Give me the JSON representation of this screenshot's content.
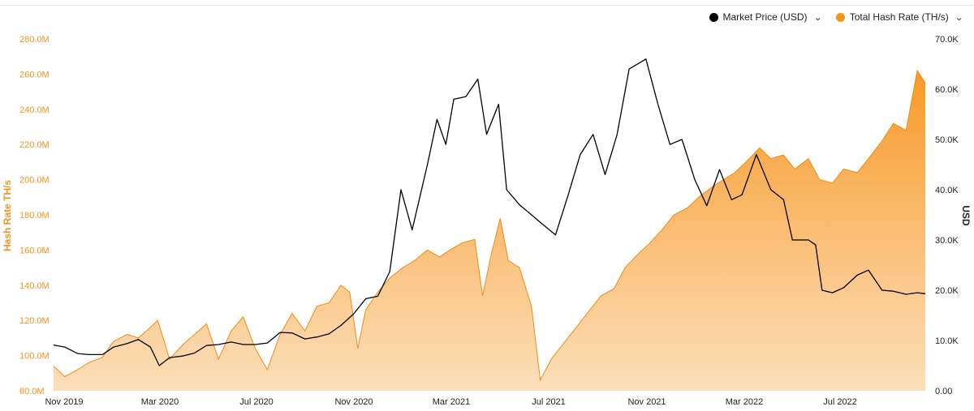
{
  "legend": {
    "price_label": "Market Price (USD)",
    "hash_label": "Total Hash Rate (TH/s)"
  },
  "colors": {
    "price": "#000000",
    "hash": "#f7931a"
  },
  "icons": {
    "dropdown": "chevron-down-icon"
  },
  "chart_data": {
    "type": "area",
    "xlabel": "",
    "ylabel_left": "Hash Rate TH/s",
    "ylabel_right": "USD",
    "x_ticks": [
      "Nov 2019",
      "Mar 2020",
      "Jul 2020",
      "Nov 2020",
      "Mar 2021",
      "Jul 2021",
      "Nov 2021",
      "Mar 2022",
      "Jul 2022"
    ],
    "x_range": [
      "2019-11-01",
      "2022-10-25"
    ],
    "left_axis": {
      "ticks": [
        "80.0M",
        "100.0M",
        "120.0M",
        "140.0M",
        "160.0M",
        "180.0M",
        "200.0M",
        "220.0M",
        "240.0M",
        "260.0M",
        "280.0M"
      ],
      "ylim": [
        80,
        280
      ],
      "unit": "M TH/s"
    },
    "right_axis": {
      "ticks": [
        "0.00",
        "10.0K",
        "20.0K",
        "30.0K",
        "40.0K",
        "50.0K",
        "60.0K",
        "70.0K"
      ],
      "ylim": [
        0,
        70000
      ]
    },
    "grid": false,
    "legend_position": "top-right",
    "series": [
      {
        "name": "Total Hash Rate (TH/s)",
        "axis": "left",
        "style": "area",
        "points": [
          [
            "2019-11-01",
            94
          ],
          [
            "2019-11-15",
            88
          ],
          [
            "2019-12-01",
            92
          ],
          [
            "2019-12-15",
            96
          ],
          [
            "2020-01-01",
            99
          ],
          [
            "2020-01-15",
            108
          ],
          [
            "2020-02-01",
            112
          ],
          [
            "2020-02-15",
            110
          ],
          [
            "2020-03-01",
            116
          ],
          [
            "2020-03-10",
            120
          ],
          [
            "2020-03-25",
            98
          ],
          [
            "2020-04-10",
            106
          ],
          [
            "2020-04-25",
            112
          ],
          [
            "2020-05-10",
            118
          ],
          [
            "2020-05-25",
            98
          ],
          [
            "2020-06-10",
            114
          ],
          [
            "2020-06-25",
            122
          ],
          [
            "2020-07-10",
            104
          ],
          [
            "2020-07-25",
            92
          ],
          [
            "2020-08-10",
            112
          ],
          [
            "2020-08-25",
            124
          ],
          [
            "2020-09-10",
            114
          ],
          [
            "2020-09-25",
            128
          ],
          [
            "2020-10-10",
            130
          ],
          [
            "2020-10-25",
            140
          ],
          [
            "2020-11-05",
            136
          ],
          [
            "2020-11-15",
            104
          ],
          [
            "2020-11-25",
            126
          ],
          [
            "2020-12-10",
            136
          ],
          [
            "2020-12-25",
            144
          ],
          [
            "2021-01-10",
            150
          ],
          [
            "2021-01-25",
            154
          ],
          [
            "2021-02-10",
            160
          ],
          [
            "2021-02-25",
            156
          ],
          [
            "2021-03-10",
            160
          ],
          [
            "2021-03-25",
            164
          ],
          [
            "2021-04-10",
            166
          ],
          [
            "2021-04-20",
            134
          ],
          [
            "2021-05-01",
            158
          ],
          [
            "2021-05-12",
            178
          ],
          [
            "2021-05-22",
            154
          ],
          [
            "2021-06-05",
            150
          ],
          [
            "2021-06-20",
            128
          ],
          [
            "2021-07-01",
            86
          ],
          [
            "2021-07-15",
            98
          ],
          [
            "2021-08-01",
            108
          ],
          [
            "2021-08-15",
            116
          ],
          [
            "2021-09-01",
            126
          ],
          [
            "2021-09-15",
            134
          ],
          [
            "2021-10-01",
            138
          ],
          [
            "2021-10-15",
            150
          ],
          [
            "2021-11-01",
            158
          ],
          [
            "2021-11-15",
            164
          ],
          [
            "2021-12-01",
            172
          ],
          [
            "2021-12-15",
            180
          ],
          [
            "2022-01-01",
            184
          ],
          [
            "2022-01-15",
            190
          ],
          [
            "2022-02-01",
            196
          ],
          [
            "2022-02-15",
            200
          ],
          [
            "2022-03-01",
            204
          ],
          [
            "2022-03-15",
            210
          ],
          [
            "2022-04-01",
            218
          ],
          [
            "2022-04-15",
            212
          ],
          [
            "2022-05-01",
            214
          ],
          [
            "2022-05-15",
            206
          ],
          [
            "2022-06-01",
            212
          ],
          [
            "2022-06-15",
            200
          ],
          [
            "2022-07-01",
            198
          ],
          [
            "2022-07-15",
            206
          ],
          [
            "2022-08-01",
            204
          ],
          [
            "2022-08-15",
            212
          ],
          [
            "2022-09-01",
            222
          ],
          [
            "2022-09-15",
            232
          ],
          [
            "2022-10-01",
            228
          ],
          [
            "2022-10-15",
            262
          ],
          [
            "2022-10-25",
            255
          ]
        ]
      },
      {
        "name": "Market Price (USD)",
        "axis": "right",
        "style": "line",
        "points": [
          [
            "2019-11-01",
            9100
          ],
          [
            "2019-11-15",
            8700
          ],
          [
            "2019-12-01",
            7400
          ],
          [
            "2019-12-15",
            7200
          ],
          [
            "2020-01-01",
            7200
          ],
          [
            "2020-01-15",
            8700
          ],
          [
            "2020-02-01",
            9400
          ],
          [
            "2020-02-15",
            10200
          ],
          [
            "2020-03-01",
            8700
          ],
          [
            "2020-03-12",
            5000
          ],
          [
            "2020-03-25",
            6600
          ],
          [
            "2020-04-10",
            6900
          ],
          [
            "2020-04-25",
            7500
          ],
          [
            "2020-05-10",
            9000
          ],
          [
            "2020-05-25",
            9200
          ],
          [
            "2020-06-10",
            9700
          ],
          [
            "2020-06-25",
            9200
          ],
          [
            "2020-07-10",
            9200
          ],
          [
            "2020-07-25",
            9500
          ],
          [
            "2020-08-10",
            11600
          ],
          [
            "2020-08-25",
            11500
          ],
          [
            "2020-09-10",
            10300
          ],
          [
            "2020-09-25",
            10700
          ],
          [
            "2020-10-10",
            11300
          ],
          [
            "2020-10-25",
            13000
          ],
          [
            "2020-11-10",
            15300
          ],
          [
            "2020-11-25",
            18300
          ],
          [
            "2020-12-10",
            18800
          ],
          [
            "2020-12-25",
            23700
          ],
          [
            "2021-01-08",
            40000
          ],
          [
            "2021-01-22",
            32000
          ],
          [
            "2021-02-10",
            45000
          ],
          [
            "2021-02-22",
            54000
          ],
          [
            "2021-03-05",
            49000
          ],
          [
            "2021-03-15",
            58000
          ],
          [
            "2021-03-30",
            58500
          ],
          [
            "2021-04-14",
            62000
          ],
          [
            "2021-04-25",
            51000
          ],
          [
            "2021-05-10",
            57000
          ],
          [
            "2021-05-20",
            40000
          ],
          [
            "2021-06-05",
            37000
          ],
          [
            "2021-06-20",
            35000
          ],
          [
            "2021-07-01",
            33500
          ],
          [
            "2021-07-20",
            31000
          ],
          [
            "2021-08-05",
            39000
          ],
          [
            "2021-08-20",
            47000
          ],
          [
            "2021-09-05",
            51000
          ],
          [
            "2021-09-20",
            43000
          ],
          [
            "2021-10-05",
            51000
          ],
          [
            "2021-10-20",
            64000
          ],
          [
            "2021-11-10",
            66000
          ],
          [
            "2021-11-25",
            57000
          ],
          [
            "2021-12-10",
            49000
          ],
          [
            "2021-12-25",
            50000
          ],
          [
            "2022-01-10",
            42000
          ],
          [
            "2022-01-25",
            36800
          ],
          [
            "2022-02-10",
            44000
          ],
          [
            "2022-02-25",
            38000
          ],
          [
            "2022-03-10",
            39000
          ],
          [
            "2022-03-28",
            47000
          ],
          [
            "2022-04-15",
            40000
          ],
          [
            "2022-05-01",
            38000
          ],
          [
            "2022-05-12",
            30000
          ],
          [
            "2022-06-01",
            30000
          ],
          [
            "2022-06-10",
            29000
          ],
          [
            "2022-06-18",
            20000
          ],
          [
            "2022-07-01",
            19500
          ],
          [
            "2022-07-15",
            20500
          ],
          [
            "2022-08-01",
            23000
          ],
          [
            "2022-08-15",
            24000
          ],
          [
            "2022-09-01",
            20000
          ],
          [
            "2022-09-15",
            19800
          ],
          [
            "2022-10-01",
            19200
          ],
          [
            "2022-10-15",
            19500
          ],
          [
            "2022-10-25",
            19300
          ]
        ]
      }
    ]
  }
}
